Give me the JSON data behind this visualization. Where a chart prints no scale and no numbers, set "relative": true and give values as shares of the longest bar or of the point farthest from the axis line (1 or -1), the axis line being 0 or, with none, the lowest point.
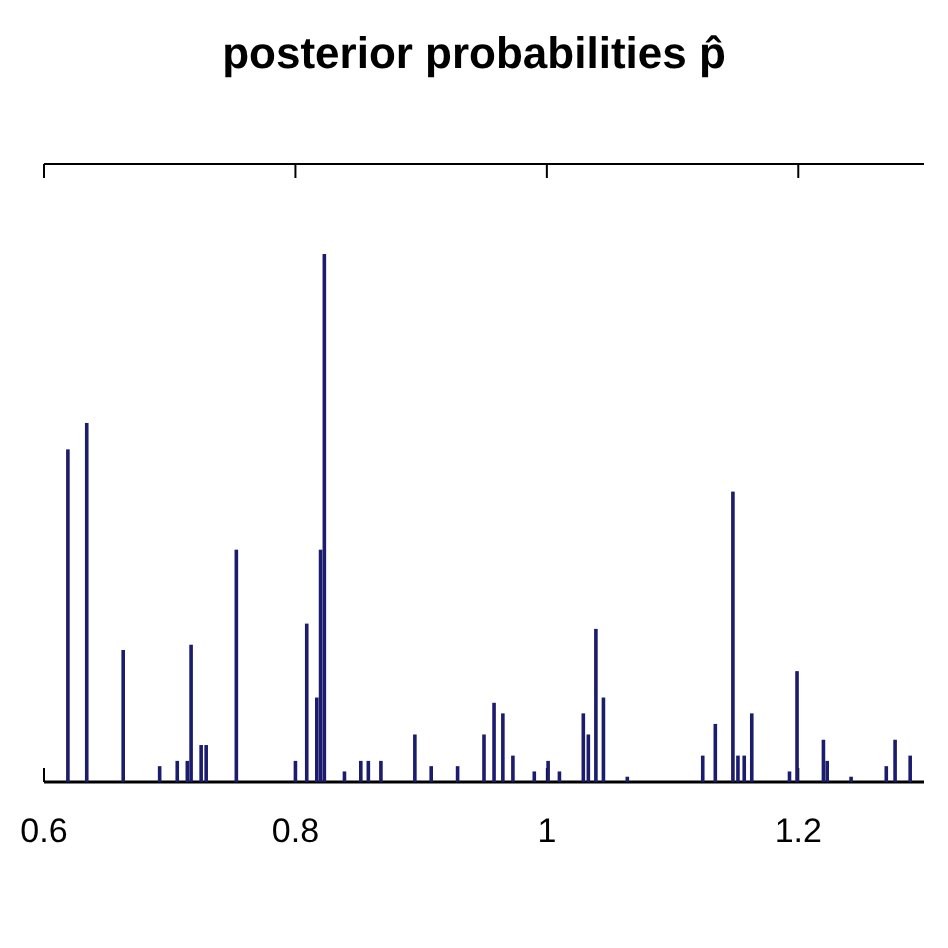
{
  "chart_data": {
    "type": "bar",
    "title": "posterior probabilities p̂",
    "relative": true,
    "color": "#1c1c6e",
    "xlim": [
      0.6,
      1.3
    ],
    "xticks": [
      {
        "value": 0.6,
        "label": "0.6"
      },
      {
        "value": 0.8,
        "label": "0.8"
      },
      1,
      {
        "value": 1.2,
        "label": "1.2"
      }
    ],
    "x": [
      0.619,
      0.634,
      0.663,
      0.692,
      0.706,
      0.714,
      0.717,
      0.725,
      0.729,
      0.753,
      0.8,
      0.809,
      0.817,
      0.82,
      0.823,
      0.839,
      0.852,
      0.858,
      0.868,
      0.895,
      0.908,
      0.929,
      0.95,
      0.958,
      0.965,
      0.973,
      0.99,
      1.001,
      1.01,
      1.029,
      1.033,
      1.039,
      1.045,
      1.064,
      1.124,
      1.134,
      1.148,
      1.152,
      1.157,
      1.163,
      1.193,
      1.199,
      1.22,
      1.223,
      1.242,
      1.27,
      1.277,
      1.289
    ],
    "values": [
      0.63,
      0.68,
      0.25,
      0.03,
      0.04,
      0.04,
      0.26,
      0.07,
      0.07,
      0.44,
      0.04,
      0.3,
      0.16,
      0.44,
      1,
      0.02,
      0.04,
      0.04,
      0.04,
      0.09,
      0.03,
      0.03,
      0.09,
      0.15,
      0.13,
      0.05,
      0.02,
      0.04,
      0.02,
      0.13,
      0.09,
      0.29,
      0.16,
      0.01,
      0.05,
      0.11,
      0.55,
      0.05,
      0.05,
      0.13,
      0.02,
      0.21,
      0.08,
      0.04,
      0.01,
      0.03,
      0.08,
      0.05
    ]
  }
}
